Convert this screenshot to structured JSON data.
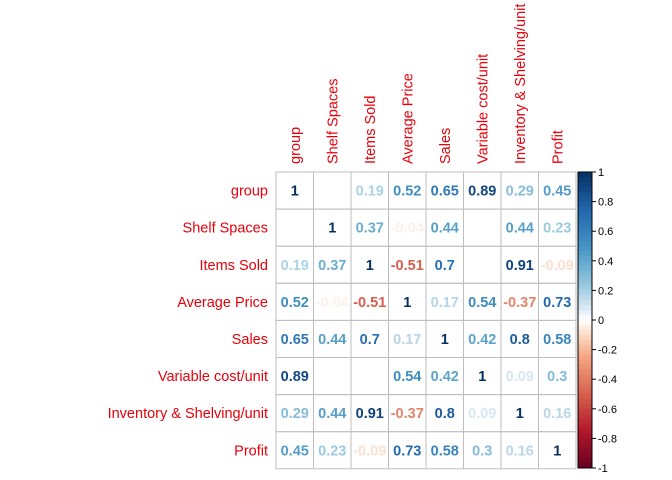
{
  "chart_data": {
    "type": "heatmap",
    "title": "",
    "variables": [
      "group",
      "Shelf Spaces",
      "Items Sold",
      "Average Price",
      "Sales",
      "Variable cost/unit",
      "Inventory & Shelving/unit",
      "Profit"
    ],
    "matrix": [
      [
        1,
        0.01,
        0.19,
        0.52,
        0.65,
        0.89,
        0.29,
        0.45
      ],
      [
        0.01,
        1,
        0.37,
        -0.04,
        0.44,
        0.01,
        0.44,
        0.23
      ],
      [
        0.19,
        0.37,
        1,
        -0.51,
        0.7,
        0.01,
        0.91,
        -0.09
      ],
      [
        0.52,
        -0.04,
        -0.51,
        1,
        0.17,
        0.54,
        -0.37,
        0.73
      ],
      [
        0.65,
        0.44,
        0.7,
        0.17,
        1,
        0.42,
        0.8,
        0.58
      ],
      [
        0.89,
        0.01,
        0.01,
        0.54,
        0.42,
        1,
        0.09,
        0.3
      ],
      [
        0.29,
        0.44,
        0.91,
        -0.37,
        0.8,
        0.09,
        1,
        0.16
      ],
      [
        0.45,
        0.23,
        -0.09,
        0.73,
        0.58,
        0.3,
        0.16,
        1
      ]
    ],
    "labels": [
      [
        "1",
        "",
        "0.19",
        "0.52",
        "0.65",
        "0.89",
        "0.29",
        "0.45"
      ],
      [
        "",
        "1",
        "0.37",
        "-0.04",
        "0.44",
        "",
        "0.44",
        "0.23"
      ],
      [
        "0.19",
        "0.37",
        "1",
        "-0.51",
        "0.7",
        "",
        "0.91",
        "-0.09"
      ],
      [
        "0.52",
        "-0.04",
        "-0.51",
        "1",
        "0.17",
        "0.54",
        "-0.37",
        "0.73"
      ],
      [
        "0.65",
        "0.44",
        "0.7",
        "0.17",
        "1",
        "0.42",
        "0.8",
        "0.58"
      ],
      [
        "0.89",
        "",
        "",
        "0.54",
        "0.42",
        "1",
        "0.09",
        "0.3"
      ],
      [
        "0.29",
        "0.44",
        "0.91",
        "-0.37",
        "0.8",
        "0.09",
        "1",
        "0.16"
      ],
      [
        "0.45",
        "0.23",
        "-0.09",
        "0.73",
        "0.58",
        "0.3",
        "0.16",
        "1"
      ]
    ],
    "colorbar": {
      "range": [
        -1,
        1
      ],
      "ticks": [
        "1",
        "0.8",
        "0.6",
        "0.4",
        "0.2",
        "0",
        "-0.2",
        "-0.4",
        "-0.6",
        "-0.8",
        "-1"
      ]
    },
    "label_color": "#e8000b",
    "grid_color": "#bebebe"
  }
}
